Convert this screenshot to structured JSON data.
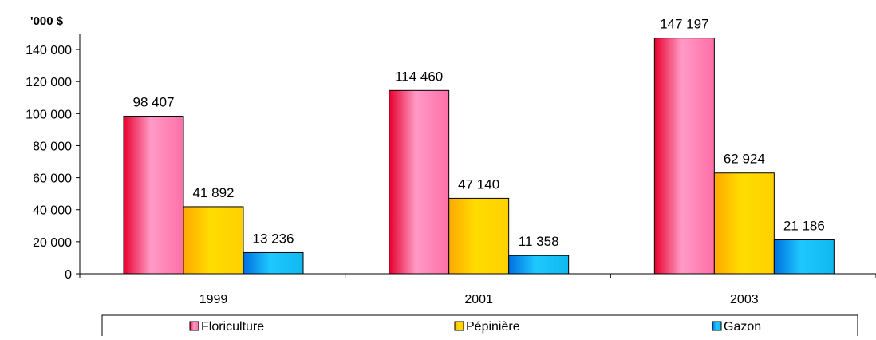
{
  "chart_data": {
    "type": "bar",
    "ylabel": "'000 $",
    "categories": [
      "1999",
      "2001",
      "2003"
    ],
    "series": [
      {
        "name": "Floriculture",
        "values": [
          98407,
          114460,
          147197
        ],
        "color": "#f490b8"
      },
      {
        "name": "Pépinière",
        "values": [
          41892,
          47140,
          62924
        ],
        "color": "#ffd200"
      },
      {
        "name": "Gazon",
        "values": [
          13236,
          11358,
          21186
        ],
        "color": "#19bff0"
      }
    ],
    "data_labels": [
      [
        "98 407",
        "114 460",
        "147 197"
      ],
      [
        "41 892",
        "47 140",
        "62 924"
      ],
      [
        "13 236",
        "11 358",
        "21 186"
      ]
    ],
    "yticks": [
      0,
      20000,
      40000,
      60000,
      80000,
      100000,
      120000,
      140000
    ],
    "ytick_labels": [
      "0",
      "20 000",
      "40 000",
      "60 000",
      "80 000",
      "100 000",
      "120 000",
      "140 000"
    ],
    "ylim": [
      0,
      150000
    ],
    "legend_position": "bottom",
    "grid": false
  }
}
